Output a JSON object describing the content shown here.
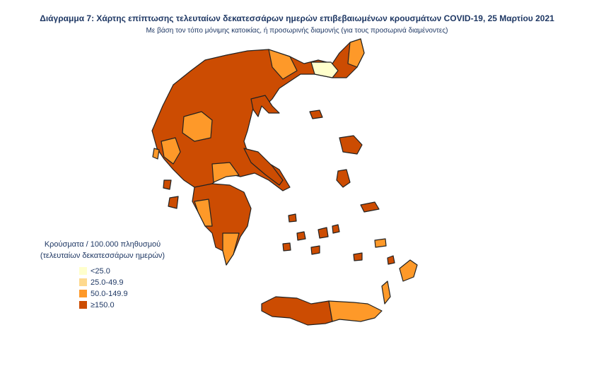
{
  "header": {
    "title": "Διάγραμμα 7: Χάρτης επίπτωσης τελευταίων δεκατεσσάρων ημερών επιβεβαιωμένων κρουσμάτων COVID-19, 25 Μαρτίου 2021",
    "subtitle": "Με βάση τον τόπο μόνιμης κατοικίας, ή προσωρινής διαμονής (για τους προσωρινά διαμένοντες)"
  },
  "legend": {
    "title": [
      "Κρούσματα / 100.000 πληθυσμού",
      "(τελευταίων δεκατεσσάρων ημερών)"
    ],
    "items": [
      {
        "label": "<25.0",
        "color": "#ffffcc"
      },
      {
        "label": "25.0-49.9",
        "color": "#fed98e"
      },
      {
        "label": "50.0-149.9",
        "color": "#fe9929"
      },
      {
        "label": "≥150.0",
        "color": "#cc4c02"
      }
    ]
  }
}
